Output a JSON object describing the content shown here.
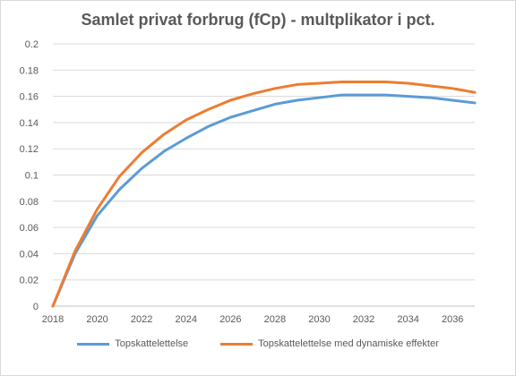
{
  "chart_data": {
    "type": "line",
    "title": "Samlet privat forbrug (fCp) - multplikator i pct.",
    "xlabel": "",
    "ylabel": "",
    "x": [
      2018,
      2019,
      2020,
      2021,
      2022,
      2023,
      2024,
      2025,
      2026,
      2027,
      2028,
      2029,
      2030,
      2031,
      2032,
      2033,
      2034,
      2035,
      2036,
      2037
    ],
    "x_ticks": [
      2018,
      2020,
      2022,
      2024,
      2026,
      2028,
      2030,
      2032,
      2034,
      2036
    ],
    "xlim": [
      2018,
      2037
    ],
    "ylim": [
      0,
      0.2
    ],
    "y_ticks": [
      "0",
      "0.02",
      "0.04",
      "0.06",
      "0.08",
      "0.1",
      "0.12",
      "0.14",
      "0.16",
      "0.18",
      "0.2"
    ],
    "grid": "horizontal",
    "legend_position": "bottom",
    "series": [
      {
        "name": "Topskattelettelse",
        "color": "#5B9BD5",
        "values": [
          0.0,
          0.04,
          0.069,
          0.089,
          0.105,
          0.118,
          0.128,
          0.137,
          0.144,
          0.149,
          0.154,
          0.157,
          0.159,
          0.161,
          0.161,
          0.161,
          0.16,
          0.159,
          0.157,
          0.155
        ]
      },
      {
        "name": "Topskattelettelse med dynamiske effekter",
        "color": "#ED7D31",
        "values": [
          0.0,
          0.042,
          0.074,
          0.099,
          0.117,
          0.131,
          0.142,
          0.15,
          0.157,
          0.162,
          0.166,
          0.169,
          0.17,
          0.171,
          0.171,
          0.171,
          0.17,
          0.168,
          0.166,
          0.163
        ]
      }
    ]
  }
}
